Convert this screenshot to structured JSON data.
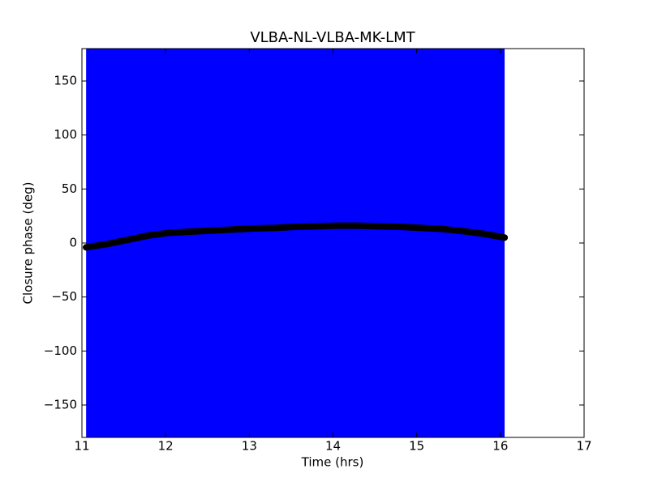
{
  "chart_data": {
    "type": "errorbar",
    "title": "VLBA-NL-VLBA-MK-LMT",
    "x_label": "Time (hrs)",
    "y_label": "Closure phase (deg)",
    "x": [
      11.05,
      11.3,
      11.55,
      11.8,
      12.05,
      12.3,
      12.55,
      12.8,
      13.05,
      13.3,
      13.55,
      13.8,
      14.05,
      14.3,
      14.55,
      14.8,
      15.05,
      15.3,
      15.55,
      15.8,
      16.05
    ],
    "values": [
      -4,
      -1,
      3,
      7,
      9.5,
      10.5,
      11.5,
      12.5,
      13.5,
      14,
      15,
      15.5,
      16,
      16,
      15.5,
      15,
      14,
      13,
      11,
      8.5,
      5
    ],
    "errors": [
      200,
      200,
      200,
      200,
      200,
      200,
      200,
      200,
      200,
      200,
      200,
      200,
      200,
      200,
      200,
      200,
      200,
      200,
      200,
      200,
      200
    ],
    "color": "#000000",
    "error_color": "#0000ff",
    "xlim": [
      11,
      17
    ],
    "ylim": [
      -180,
      180
    ],
    "xticks": [
      11,
      12,
      13,
      14,
      15,
      16,
      17
    ],
    "yticks": [
      {
        "value": -150,
        "label": "−150"
      },
      {
        "value": -100,
        "label": "−100"
      },
      {
        "value": -50,
        "label": "−50"
      },
      0,
      50,
      100,
      150
    ]
  }
}
